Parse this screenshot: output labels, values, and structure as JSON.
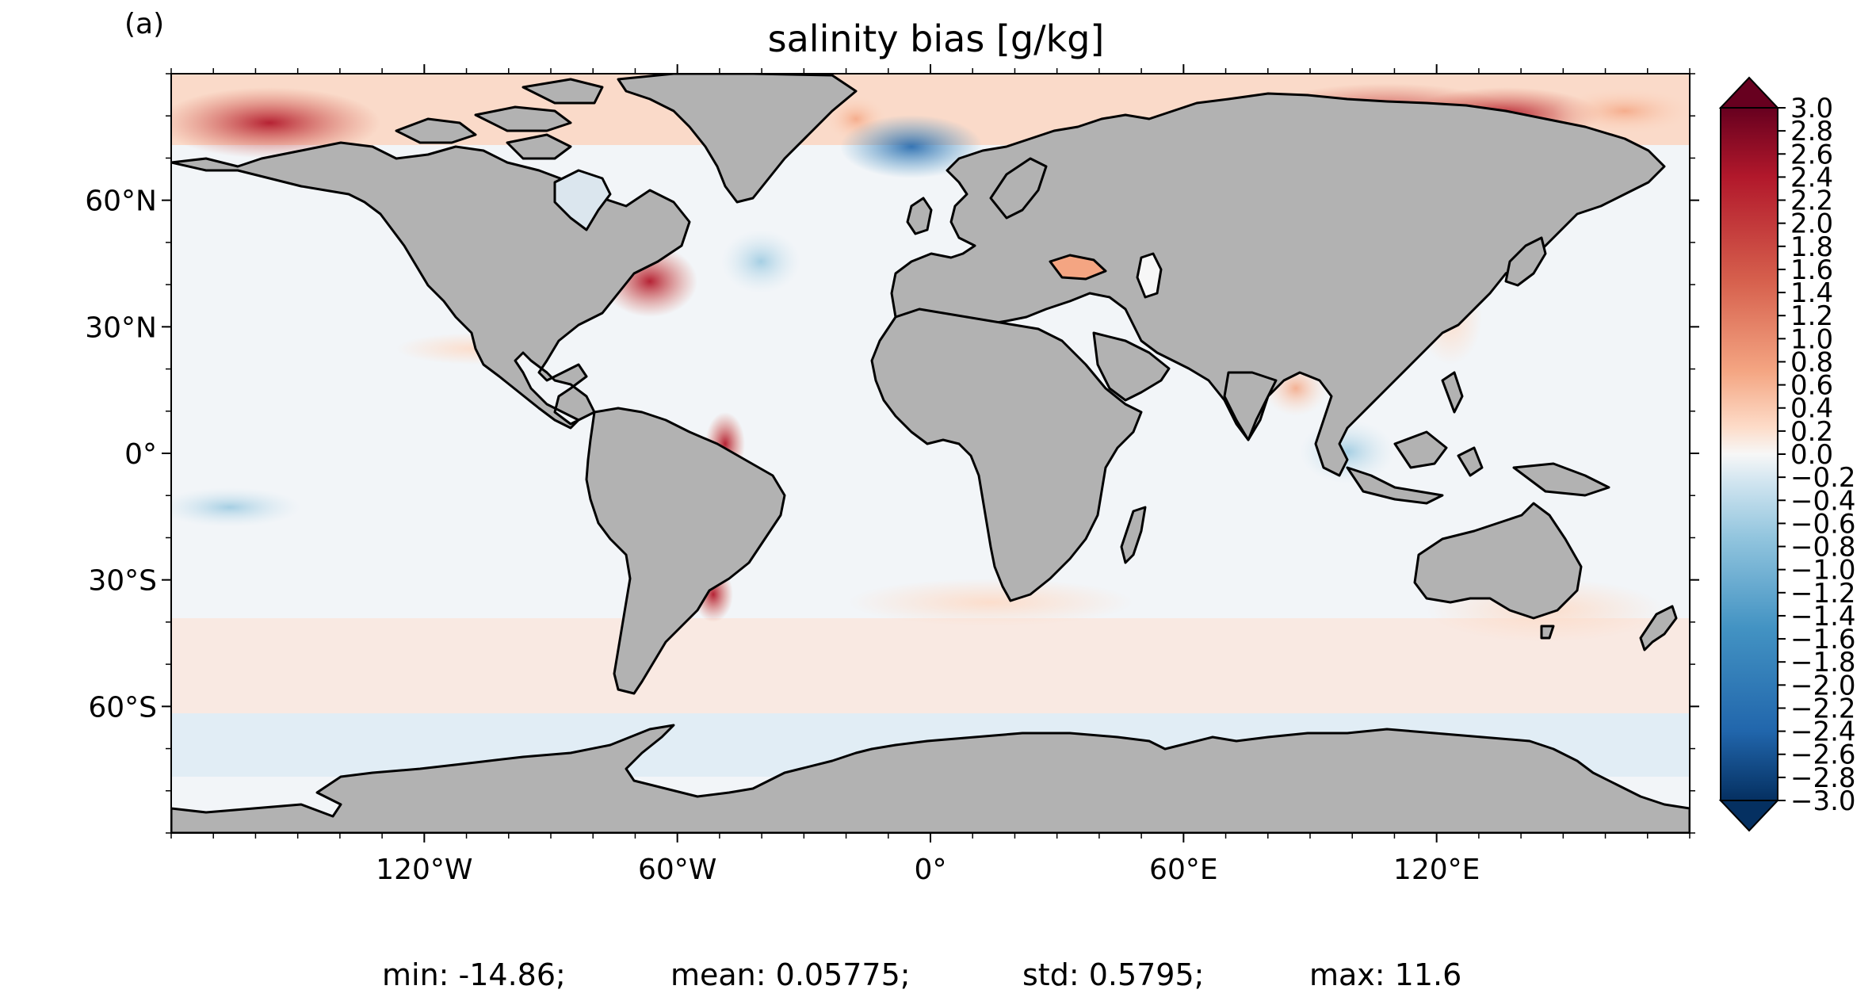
{
  "panel_label": "(a)",
  "title": "salinity bias [g/kg]",
  "map": {
    "projection": "PlateCarree",
    "lon_range": [
      -180,
      180
    ],
    "lat_range": [
      -90,
      90
    ],
    "land_color": "#b2b2b2",
    "coastline_color": "#000000",
    "lon_ticks": [
      {
        "value": -120,
        "label": "120°W"
      },
      {
        "value": -60,
        "label": "60°W"
      },
      {
        "value": 0,
        "label": "0°"
      },
      {
        "value": 60,
        "label": "60°E"
      },
      {
        "value": 120,
        "label": "120°E"
      }
    ],
    "lat_ticks": [
      {
        "value": 60,
        "label": "60°N"
      },
      {
        "value": 30,
        "label": "30°N"
      },
      {
        "value": 0,
        "label": "0°"
      },
      {
        "value": -30,
        "label": "30°S"
      },
      {
        "value": -60,
        "label": "60°S"
      }
    ]
  },
  "colorbar": {
    "colormap": "RdBu_r",
    "vmin": -3.0,
    "vmax": 3.0,
    "extend": "both",
    "tick_labels": [
      "3.0",
      "2.8",
      "2.6",
      "2.4",
      "2.2",
      "2.0",
      "1.8",
      "1.6",
      "1.4",
      "1.2",
      "1.0",
      "0.8",
      "0.6",
      "0.4",
      "0.2",
      "0.0",
      "−0.2",
      "−0.4",
      "−0.6",
      "−0.8",
      "−1.0",
      "−1.2",
      "−1.4",
      "−1.6",
      "−1.8",
      "−2.0",
      "−2.2",
      "−2.4",
      "−2.6",
      "−2.8",
      "−3.0"
    ]
  },
  "stats": {
    "min": "min: -14.86;",
    "mean": "mean: 0.05775;",
    "std": "std: 0.5795;",
    "max": "max: 11.6"
  }
}
